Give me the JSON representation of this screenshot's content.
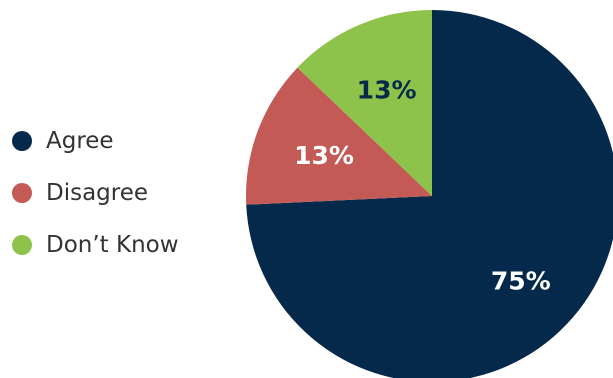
{
  "chart_data": {
    "type": "pie",
    "title": "",
    "legend_position": "left",
    "slices": [
      {
        "name": "Agree",
        "value": 75,
        "label": "75%",
        "color": "#05294a",
        "label_color": "#ffffff"
      },
      {
        "name": "Disagree",
        "value": 13,
        "label": "13%",
        "color": "#c35a56",
        "label_color": "#ffffff"
      },
      {
        "name": "Don’t Know",
        "value": 13,
        "label": "13%",
        "color": "#8ec34b",
        "label_color": "#05294a"
      }
    ]
  }
}
